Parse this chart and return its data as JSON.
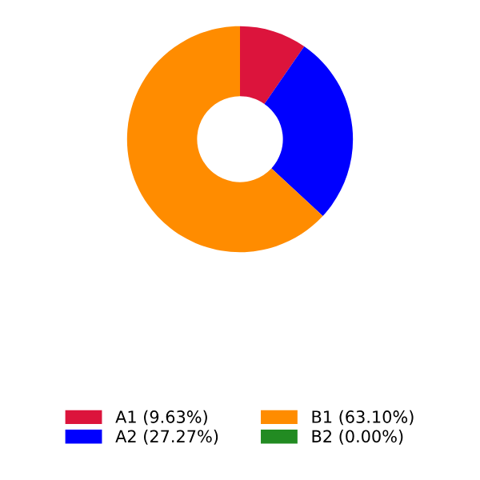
{
  "chart_data": {
    "type": "donut",
    "categories": [
      "A1 (9.63%)",
      "A2 (27.27%)",
      "B1 (63.10%)",
      "B2 (0.00%)"
    ],
    "values": [
      9.63,
      27.27,
      63.1,
      0.0
    ],
    "colors": [
      "#dc143c",
      "#0000ff",
      "#ff8c00",
      "#228b22"
    ],
    "legend": "bottom"
  }
}
